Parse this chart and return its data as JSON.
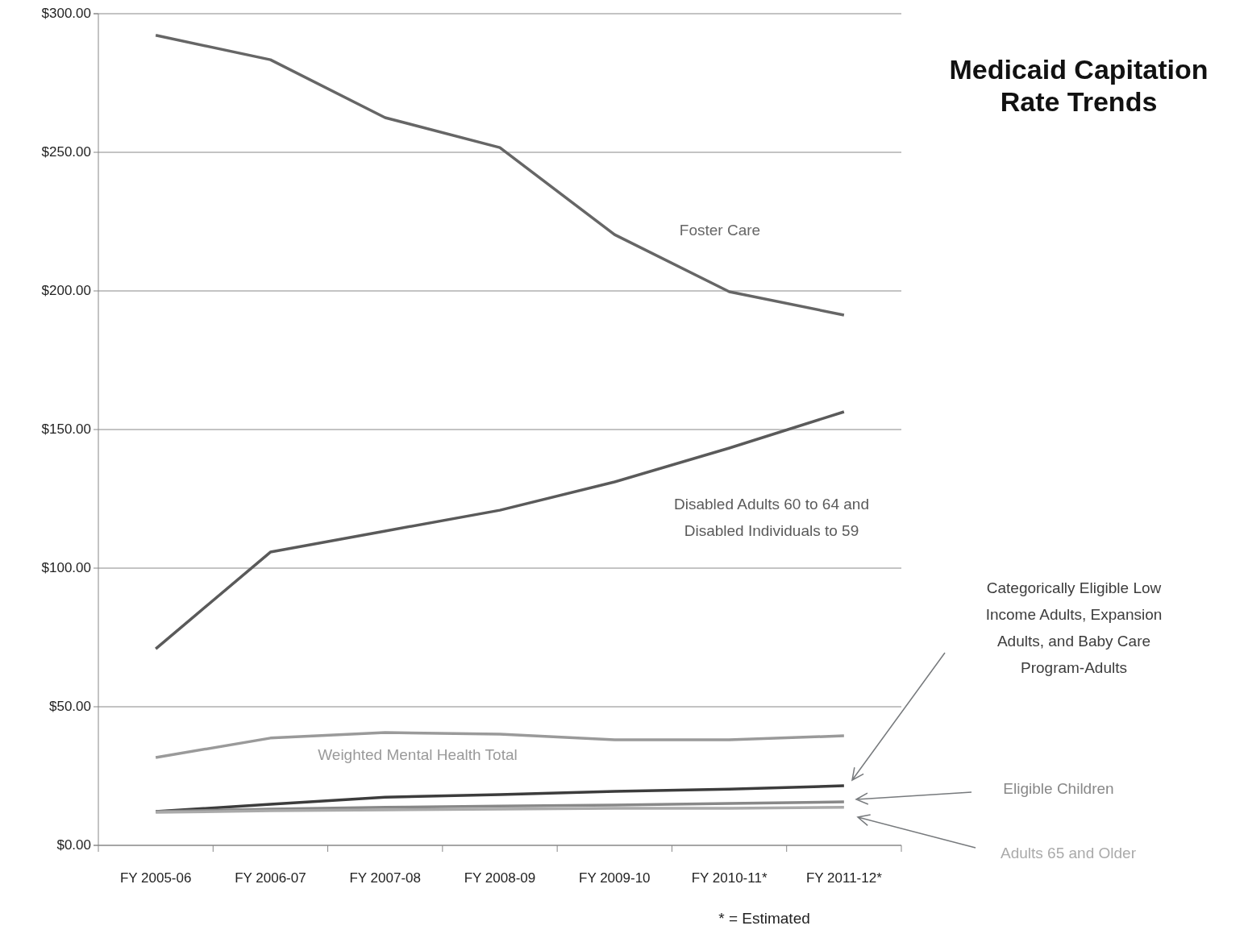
{
  "chart_data": {
    "type": "line",
    "title": "Medicaid Capitation Rate Trends",
    "categories": [
      "FY 2005-06",
      "FY 2006-07",
      "FY 2007-08",
      "FY 2008-09",
      "FY 2009-10",
      "FY 2010-11*",
      "FY 2011-12*"
    ],
    "series": [
      {
        "name": "Foster Care",
        "color": "#666666",
        "values": [
          292.2,
          283.4,
          262.5,
          251.7,
          220.3,
          199.7,
          191.3
        ]
      },
      {
        "name": "Disabled Adults 60 to 64 and Disabled Individuals to 59",
        "color": "#5a5a5a",
        "values": [
          70.9,
          105.8,
          113.4,
          120.9,
          131.1,
          143.3,
          156.4
        ]
      },
      {
        "name": "Weighted Mental Health Total",
        "color": "#9a9a9a",
        "values": [
          31.7,
          38.7,
          40.7,
          40.1,
          38.1,
          38.1,
          39.5
        ]
      },
      {
        "name": "Categorically Eligible Low Income Adults, Expansion Adults, and Baby Care Program-Adults",
        "color": "#3c3c3c",
        "values": [
          12.2,
          14.8,
          17.4,
          18.3,
          19.5,
          20.3,
          21.5
        ]
      },
      {
        "name": "Eligible Children",
        "color": "#888888",
        "values": [
          12.2,
          13.1,
          13.7,
          14.2,
          14.5,
          15.1,
          15.7
        ]
      },
      {
        "name": "Adults 65 and Older",
        "color": "#aaaaaa",
        "values": [
          11.9,
          12.5,
          12.8,
          13.1,
          13.4,
          13.4,
          13.7
        ]
      }
    ],
    "ylim": [
      0,
      300
    ],
    "yticks": [
      {
        "value": 0,
        "label": "$0.00"
      },
      {
        "value": 50,
        "label": "$50.00"
      },
      {
        "value": 100,
        "label": "$100.00"
      },
      {
        "value": 150,
        "label": "$150.00"
      },
      {
        "value": 200,
        "label": "$200.00"
      },
      {
        "value": 250,
        "label": "$250.00"
      },
      {
        "value": 300,
        "label": "$300.00"
      }
    ],
    "grid": "y",
    "marker": "none",
    "line_style": "solid",
    "annotations": [
      "* = Estimated"
    ]
  }
}
